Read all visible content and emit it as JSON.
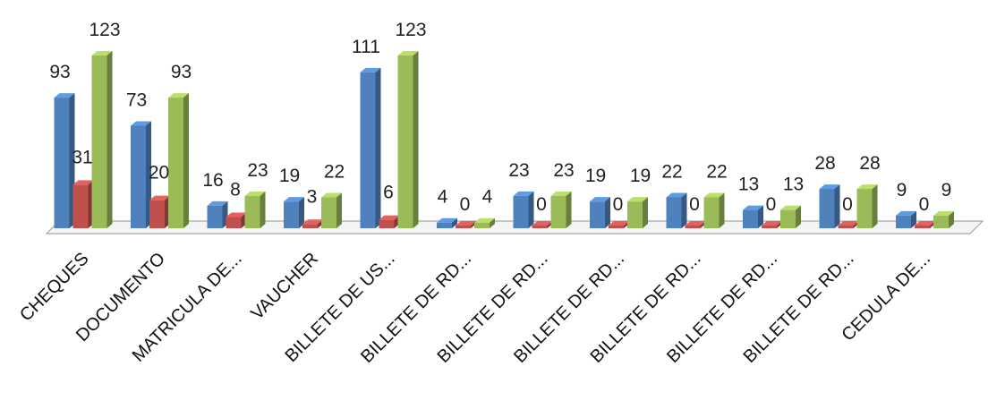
{
  "chart_data": {
    "type": "bar",
    "style": "3d-clustered-column",
    "grid": false,
    "legend": "none",
    "categories": [
      "CHEQUES",
      "DOCUMENTO",
      "MATRICULA DE...",
      "VAUCHER",
      "BILLETE DE US...",
      "BILLETE DE RD...",
      "BILLETE DE RD...",
      "BILLETE DE RD...",
      "BILLETE DE RD...",
      "BILLETE DE RD...",
      "BILLETE DE RD...",
      "CEDULA DE..."
    ],
    "series": [
      {
        "color": "#4F81BD",
        "values": [
          93,
          73,
          16,
          19,
          111,
          4,
          23,
          19,
          22,
          13,
          28,
          9
        ]
      },
      {
        "color": "#C0504D",
        "values": [
          31,
          20,
          8,
          3,
          6,
          0,
          0,
          0,
          0,
          0,
          0,
          0
        ]
      },
      {
        "color": "#9BBB59",
        "values": [
          123,
          93,
          23,
          22,
          123,
          4,
          23,
          19,
          22,
          13,
          28,
          9
        ]
      }
    ],
    "ylim": [
      0,
      123
    ]
  }
}
